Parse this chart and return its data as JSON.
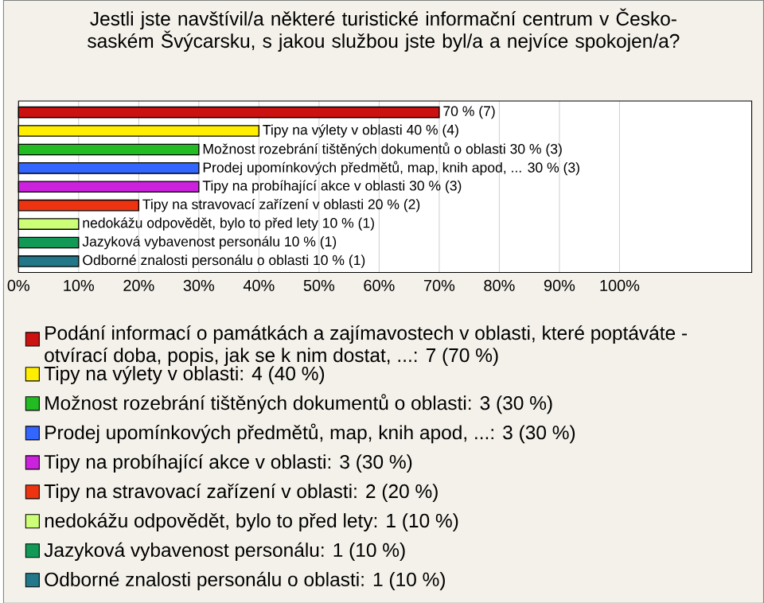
{
  "chart_data": {
    "type": "bar",
    "orientation": "horizontal",
    "title": "Jestli jste navštívil/a některé turistické informační centrum v Česko-saském Švýcarsku, s jakou službou jste byl/a a nejvíce spokojen/a?",
    "categories": [
      null,
      null,
      null,
      null,
      null,
      null,
      null,
      null,
      null
    ],
    "xlim": [
      0,
      122
    ],
    "xticks": [
      {
        "value": 0,
        "label": "0%"
      },
      {
        "value": 10,
        "label": "10%"
      },
      {
        "value": 20,
        "label": "20%"
      },
      {
        "value": 30,
        "label": "30%"
      },
      {
        "value": 40,
        "label": "40%"
      },
      {
        "value": 50,
        "label": "50%"
      },
      {
        "value": 60,
        "label": "60%"
      },
      {
        "value": 70,
        "label": "70%"
      },
      {
        "value": 80,
        "label": "80%"
      },
      {
        "value": 90,
        "label": "90%"
      },
      {
        "value": 100,
        "label": "100%"
      }
    ],
    "grid": "x",
    "legend": "bottom",
    "series": [
      {
        "name": "Podání informací o památkách a zajímavostech v oblasti, které poptáváte - otvírací doba, popis, jak se k nim dostat, ...: 7 (70 %)",
        "color": "#cc1111",
        "values": [
          70,
          null,
          null,
          null,
          null,
          null,
          null,
          null,
          null
        ],
        "value_labels": [
          "70 % (7)",
          null,
          null,
          null,
          null,
          null,
          null,
          null,
          null
        ]
      },
      {
        "name": "Tipy na výlety v oblasti: 4 (40 %)",
        "color": "#ffee00",
        "values": [
          null,
          40,
          null,
          null,
          null,
          null,
          null,
          null,
          null
        ],
        "value_labels": [
          null,
          "Tipy na výlety v oblasti 40 % (4)",
          null,
          null,
          null,
          null,
          null,
          null,
          null
        ]
      },
      {
        "name": "Možnost rozebrání tištěných dokumentů o oblasti: 3 (30 %)",
        "color": "#22bb22",
        "values": [
          null,
          null,
          30,
          null,
          null,
          null,
          null,
          null,
          null
        ],
        "value_labels": [
          null,
          null,
          "Možnost rozebrání tištěných dokumentů o oblasti 30 % (3)",
          null,
          null,
          null,
          null,
          null,
          null
        ]
      },
      {
        "name": "Prodej upomínkových předmětů, map, knih apod, ...: 3 (30 %)",
        "color": "#3366ff",
        "values": [
          null,
          null,
          null,
          30,
          null,
          null,
          null,
          null,
          null
        ],
        "value_labels": [
          null,
          null,
          null,
          "Prodej upomínkových předmětů, map, knih apod, ... 30 % (3)",
          null,
          null,
          null,
          null,
          null
        ]
      },
      {
        "name": "Tipy na probíhající akce v oblasti: 3 (30 %)",
        "color": "#cc22dd",
        "values": [
          null,
          null,
          null,
          null,
          30,
          null,
          null,
          null,
          null
        ],
        "value_labels": [
          null,
          null,
          null,
          null,
          "Tipy na probíhající akce v oblasti 30 % (3)",
          null,
          null,
          null,
          null
        ]
      },
      {
        "name": "Tipy na stravovací zařízení v oblasti: 2 (20 %)",
        "color": "#ee3311",
        "values": [
          null,
          null,
          null,
          null,
          null,
          20,
          null,
          null,
          null
        ],
        "value_labels": [
          null,
          null,
          null,
          null,
          null,
          "Tipy na stravovací zařízení v oblasti 20 % (2)",
          null,
          null,
          null
        ]
      },
      {
        "name": "nedokážu odpovědět, bylo to před lety: 1 (10 %)",
        "color": "#ccff77",
        "values": [
          null,
          null,
          null,
          null,
          null,
          null,
          10,
          null,
          null
        ],
        "value_labels": [
          null,
          null,
          null,
          null,
          null,
          null,
          "nedokážu odpovědět, bylo to před lety 10 % (1)",
          null,
          null
        ]
      },
      {
        "name": "Jazyková vybavenost personálu: 1 (10 %)",
        "color": "#119955",
        "values": [
          null,
          null,
          null,
          null,
          null,
          null,
          null,
          10,
          null
        ],
        "value_labels": [
          null,
          null,
          null,
          null,
          null,
          null,
          null,
          "Jazyková vybavenost personálu 10 % (1)",
          null
        ]
      },
      {
        "name": "Odborné znalosti personálu o oblasti: 1 (10 %)",
        "color": "#227788",
        "values": [
          null,
          null,
          null,
          null,
          null,
          null,
          null,
          null,
          10
        ],
        "value_labels": [
          null,
          null,
          null,
          null,
          null,
          null,
          null,
          null,
          "Odborné znalosti personálu o oblasti 10 % (1)"
        ]
      }
    ]
  }
}
